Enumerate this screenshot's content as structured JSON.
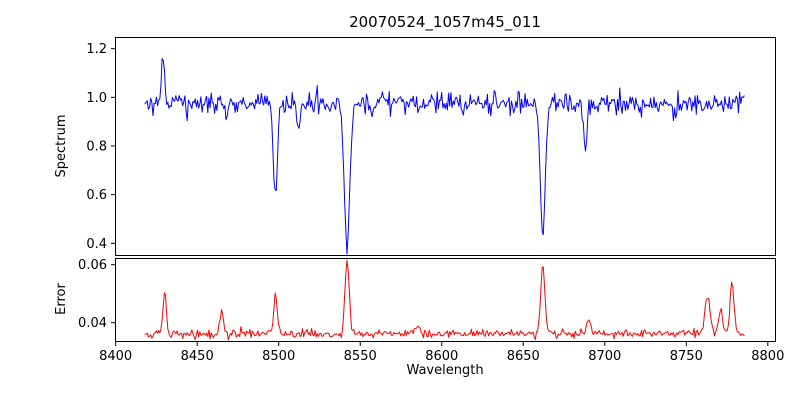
{
  "figure": {
    "title": "20070524_1057m45_011",
    "xlabel": "Wavelength",
    "xlim": [
      8399.6,
      8804.4
    ],
    "xticks": [
      {
        "v": 8400,
        "label": "8400"
      },
      {
        "v": 8450,
        "label": "8450"
      },
      {
        "v": 8500,
        "label": "8500"
      },
      {
        "v": 8550,
        "label": "8550"
      },
      {
        "v": 8600,
        "label": "8600"
      },
      {
        "v": 8650,
        "label": "8650"
      },
      {
        "v": 8700,
        "label": "8700"
      },
      {
        "v": 8750,
        "label": "8750"
      },
      {
        "v": 8800,
        "label": "8800"
      }
    ],
    "background": "#ffffff",
    "axis_color": "#000000"
  },
  "chart_data": [
    {
      "type": "line",
      "name": "spectrum",
      "ylabel": "Spectrum",
      "color": "#0000ff",
      "ylim": [
        0.352,
        1.248
      ],
      "yticks": [
        {
          "v": 0.4,
          "label": "0.4"
        },
        {
          "v": 0.6,
          "label": "0.6"
        },
        {
          "v": 0.8,
          "label": "0.8"
        },
        {
          "v": 1.0,
          "label": "1.0"
        },
        {
          "v": 1.2,
          "label": "1.2"
        }
      ],
      "x_start": 8418,
      "x_end": 8786,
      "x_step": 0.7,
      "baseline": 0.975,
      "noise_sigma": 0.022,
      "seed": 12345,
      "features": [
        {
          "center": 8429,
          "amp": 0.19,
          "sigma": 0.9
        },
        {
          "center": 8468,
          "amp": -0.07,
          "sigma": 1.0
        },
        {
          "center": 8498,
          "amp": -0.4,
          "sigma": 1.2
        },
        {
          "center": 8512,
          "amp": -0.1,
          "sigma": 1.1
        },
        {
          "center": 8542,
          "amp": -0.59,
          "sigma": 1.7
        },
        {
          "center": 8662,
          "amp": -0.56,
          "sigma": 1.5
        },
        {
          "center": 8688,
          "amp": -0.2,
          "sigma": 1.0
        }
      ]
    },
    {
      "type": "line",
      "name": "error",
      "ylabel": "Error",
      "color": "#ff0000",
      "ylim": [
        0.0337,
        0.0623
      ],
      "yticks": [
        {
          "v": 0.04,
          "label": "0.04"
        },
        {
          "v": 0.06,
          "label": "0.06"
        }
      ],
      "x_start": 8418,
      "x_end": 8786,
      "x_step": 0.7,
      "baseline": 0.0362,
      "noise_sigma": 0.0007,
      "seed": 999,
      "features": [
        {
          "center": 8430,
          "amp": 0.0145,
          "sigma": 1.0
        },
        {
          "center": 8465,
          "amp": 0.0075,
          "sigma": 1.2
        },
        {
          "center": 8498,
          "amp": 0.0135,
          "sigma": 1.0
        },
        {
          "center": 8542,
          "amp": 0.0255,
          "sigma": 1.3
        },
        {
          "center": 8585,
          "amp": 0.003,
          "sigma": 1.5
        },
        {
          "center": 8662,
          "amp": 0.0235,
          "sigma": 1.3
        },
        {
          "center": 8690,
          "amp": 0.005,
          "sigma": 1.2
        },
        {
          "center": 8763,
          "amp": 0.013,
          "sigma": 1.6
        },
        {
          "center": 8771,
          "amp": 0.008,
          "sigma": 1.2
        },
        {
          "center": 8778,
          "amp": 0.018,
          "sigma": 1.2
        }
      ]
    }
  ]
}
